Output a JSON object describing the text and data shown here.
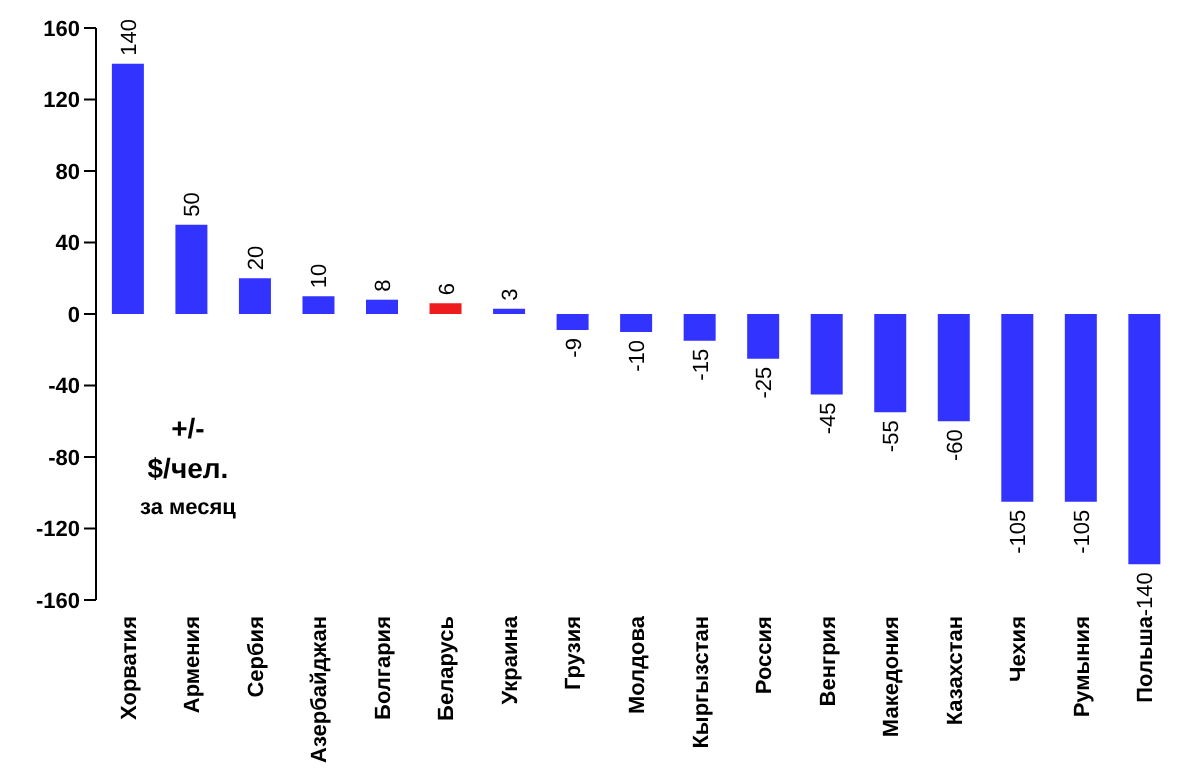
{
  "chart_data": {
    "type": "bar",
    "categories": [
      "Хорватия",
      "Армения",
      "Сербия",
      "Азербайджан",
      "Болгария",
      "Беларусь",
      "Украина",
      "Грузия",
      "Молдова",
      "Кыргызстан",
      "Россия",
      "Венгрия",
      "Македония",
      "Казахстан",
      "Чехия",
      "Румыния",
      "Польша"
    ],
    "values": [
      140,
      50,
      20,
      10,
      8,
      6,
      3,
      -9,
      -10,
      -15,
      -25,
      -45,
      -55,
      -60,
      -105,
      -105,
      -140
    ],
    "colors": [
      "#3333ff",
      "#3333ff",
      "#3333ff",
      "#3333ff",
      "#3333ff",
      "#ee1c1c",
      "#3333ff",
      "#3333ff",
      "#3333ff",
      "#3333ff",
      "#3333ff",
      "#3333ff",
      "#3333ff",
      "#3333ff",
      "#3333ff",
      "#3333ff",
      "#3333ff"
    ],
    "ylim": [
      -160,
      160
    ],
    "yticks": [
      -160,
      -120,
      -80,
      -40,
      0,
      40,
      80,
      120,
      160
    ],
    "data_labels": true,
    "annotations": [
      "+/-",
      "$/чел.",
      "за месяц"
    ]
  }
}
